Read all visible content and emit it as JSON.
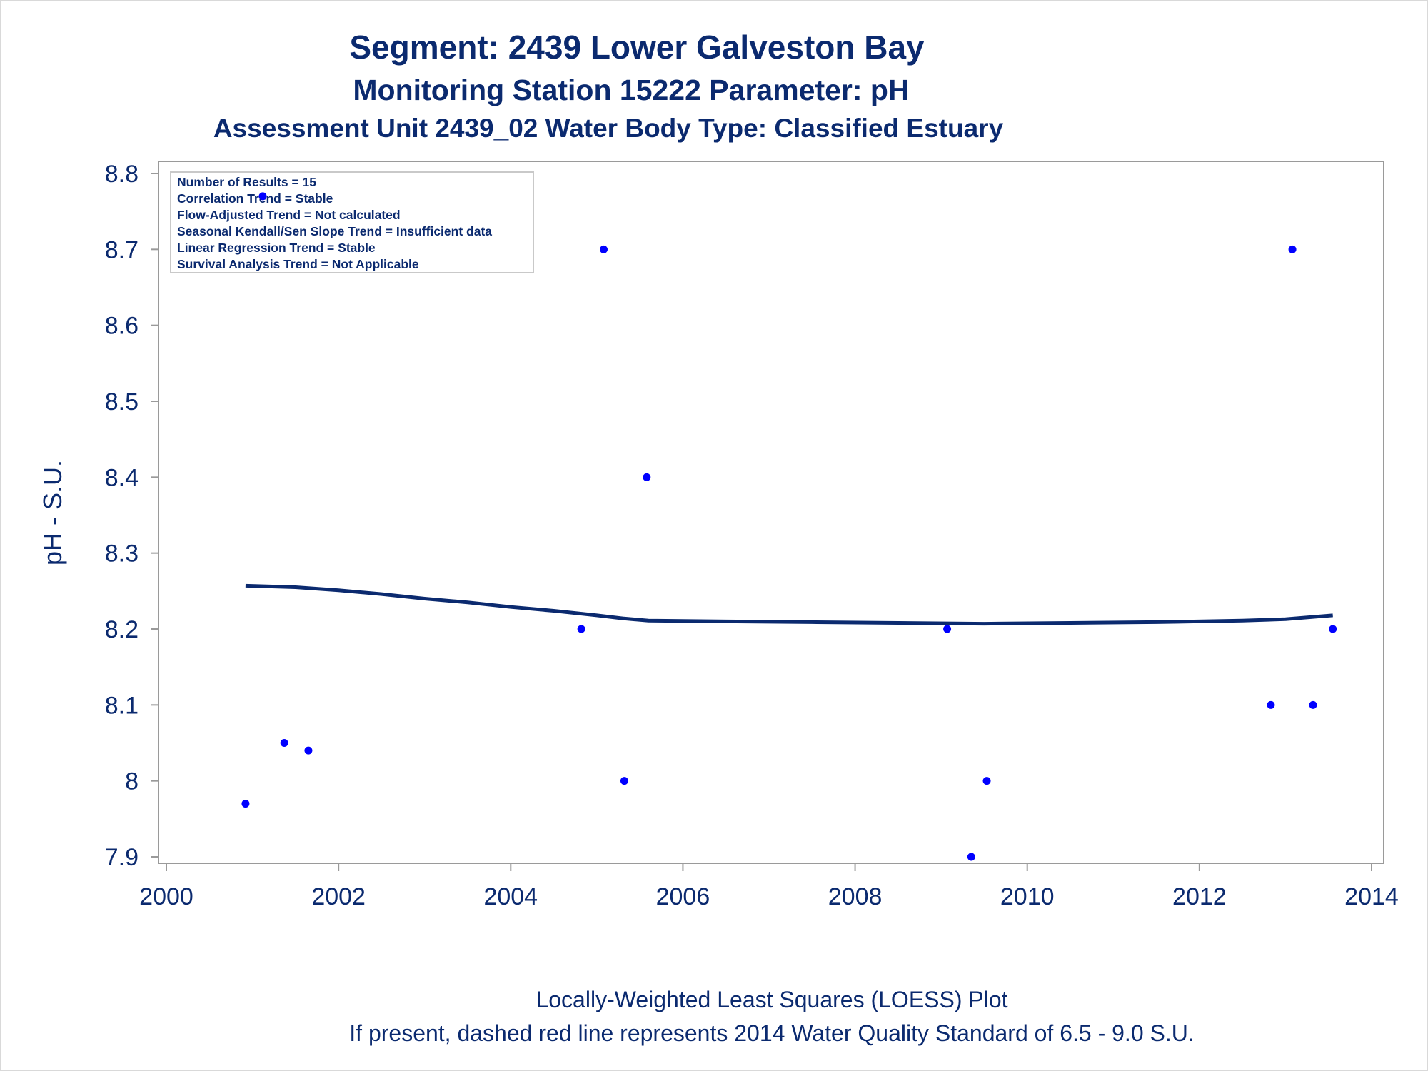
{
  "titles": {
    "line1": "Segment: 2439  Lower Galveston Bay",
    "line2": "Monitoring Station 15222 Parameter: pH",
    "line3": "Assessment Unit 2439_02   Water Body Type: Classified Estuary"
  },
  "info_box": [
    "Number of Results = 15",
    "Correlation Trend = Stable",
    "Flow-Adjusted Trend = Not calculated",
    "Seasonal Kendall/Sen Slope Trend = Insufficient data",
    "Linear Regression Trend = Stable",
    "Survival Analysis Trend = Not Applicable"
  ],
  "footnotes": {
    "line1": "Locally-Weighted Least Squares (LOESS) Plot",
    "line2": "If present, dashed red line represents 2014 Water Quality Standard of 6.5 - 9.0 S.U."
  },
  "colors": {
    "text": "#0b2a6f",
    "points": "#0000ff",
    "loess": "#0b2a6f",
    "frame": "#9a9a9a"
  },
  "chart_data": {
    "type": "scatter",
    "xlabel": "",
    "ylabel": "pH - S.U.",
    "xlim": [
      2000,
      2014
    ],
    "ylim": [
      7.9,
      8.8
    ],
    "x_ticks": [
      2000,
      2002,
      2004,
      2006,
      2008,
      2010,
      2012,
      2014
    ],
    "y_ticks": [
      7.9,
      8,
      8.1,
      8.2,
      8.3,
      8.4,
      8.5,
      8.6,
      8.7,
      8.8
    ],
    "grid": false,
    "points": [
      {
        "x": 2000.92,
        "y": 7.97
      },
      {
        "x": 2001.12,
        "y": 8.77
      },
      {
        "x": 2001.37,
        "y": 8.05
      },
      {
        "x": 2001.65,
        "y": 8.04
      },
      {
        "x": 2004.82,
        "y": 8.2
      },
      {
        "x": 2005.08,
        "y": 8.7
      },
      {
        "x": 2005.32,
        "y": 8.0
      },
      {
        "x": 2005.58,
        "y": 8.4
      },
      {
        "x": 2009.07,
        "y": 8.2
      },
      {
        "x": 2009.35,
        "y": 7.9
      },
      {
        "x": 2009.53,
        "y": 8.0
      },
      {
        "x": 2012.83,
        "y": 8.1
      },
      {
        "x": 2013.08,
        "y": 8.7
      },
      {
        "x": 2013.32,
        "y": 8.1
      },
      {
        "x": 2013.55,
        "y": 8.2
      }
    ],
    "loess": [
      {
        "x": 2000.92,
        "y": 8.257
      },
      {
        "x": 2001.5,
        "y": 8.255
      },
      {
        "x": 2002.0,
        "y": 8.251
      },
      {
        "x": 2002.5,
        "y": 8.246
      },
      {
        "x": 2003.0,
        "y": 8.24
      },
      {
        "x": 2003.5,
        "y": 8.235
      },
      {
        "x": 2004.0,
        "y": 8.229
      },
      {
        "x": 2004.5,
        "y": 8.224
      },
      {
        "x": 2005.0,
        "y": 8.218
      },
      {
        "x": 2005.3,
        "y": 8.214
      },
      {
        "x": 2005.6,
        "y": 8.211
      },
      {
        "x": 2006.5,
        "y": 8.21
      },
      {
        "x": 2007.5,
        "y": 8.209
      },
      {
        "x": 2008.5,
        "y": 8.208
      },
      {
        "x": 2009.5,
        "y": 8.207
      },
      {
        "x": 2010.5,
        "y": 8.208
      },
      {
        "x": 2011.5,
        "y": 8.209
      },
      {
        "x": 2012.5,
        "y": 8.211
      },
      {
        "x": 2013.0,
        "y": 8.213
      },
      {
        "x": 2013.55,
        "y": 8.218
      }
    ]
  }
}
